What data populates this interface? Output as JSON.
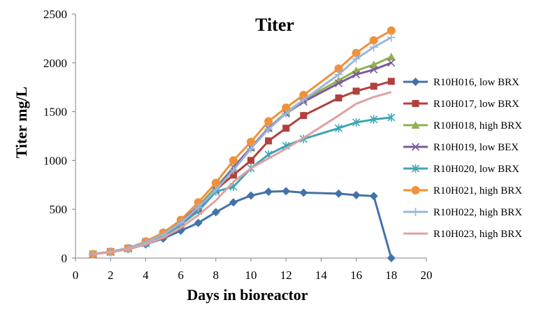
{
  "chart_data": {
    "type": "line",
    "title": "Titer",
    "xlabel": "Days in bioreactor",
    "ylabel": "Titer mg/L",
    "xlim": [
      0,
      20
    ],
    "ylim": [
      0,
      2500
    ],
    "xticks": [
      0,
      2,
      4,
      6,
      8,
      10,
      12,
      14,
      16,
      18,
      20
    ],
    "yticks": [
      0,
      500,
      1000,
      1500,
      2000,
      2500
    ],
    "grid": false,
    "legend_position": "right",
    "series": [
      {
        "name": "R10H016, low BRX",
        "color": "#4472A8",
        "marker": "diamond",
        "x": [
          1,
          2,
          3,
          4,
          5,
          6,
          7,
          8,
          9,
          10,
          11,
          12,
          13,
          15,
          16,
          17,
          18
        ],
        "y": [
          40,
          60,
          90,
          140,
          200,
          280,
          360,
          470,
          570,
          640,
          680,
          685,
          670,
          660,
          645,
          635,
          0
        ]
      },
      {
        "name": "R10H017, low BRX",
        "color": "#B2403D",
        "marker": "square",
        "x": [
          1,
          2,
          3,
          4,
          5,
          6,
          7,
          8,
          9,
          10,
          11,
          12,
          13,
          15,
          16,
          17,
          18
        ],
        "y": [
          40,
          65,
          100,
          160,
          230,
          340,
          490,
          700,
          850,
          1000,
          1200,
          1330,
          1460,
          1640,
          1710,
          1760,
          1810
        ]
      },
      {
        "name": "R10H018, high BRX",
        "color": "#8FB14B",
        "marker": "triangle",
        "x": [
          1,
          2,
          3,
          4,
          5,
          6,
          7,
          8,
          9,
          10,
          11,
          12,
          13,
          15,
          16,
          17,
          18
        ],
        "y": [
          40,
          65,
          100,
          160,
          240,
          360,
          530,
          730,
          920,
          1130,
          1330,
          1490,
          1620,
          1820,
          1920,
          1980,
          2060
        ]
      },
      {
        "name": "R10H019, low BEX",
        "color": "#7B5A9F",
        "marker": "x",
        "x": [
          1,
          2,
          3,
          4,
          5,
          6,
          7,
          8,
          9,
          10,
          11,
          12,
          13,
          15,
          16,
          17,
          18
        ],
        "y": [
          40,
          65,
          100,
          165,
          250,
          370,
          530,
          700,
          930,
          1130,
          1330,
          1480,
          1600,
          1790,
          1880,
          1930,
          2000
        ]
      },
      {
        "name": "R10H020, low BRX",
        "color": "#3FA4B8",
        "marker": "asterisk",
        "x": [
          1,
          2,
          3,
          4,
          5,
          6,
          7,
          8,
          9,
          10,
          11,
          12,
          13,
          15,
          16,
          17,
          18
        ],
        "y": [
          40,
          60,
          95,
          150,
          230,
          340,
          480,
          680,
          730,
          920,
          1060,
          1150,
          1220,
          1330,
          1390,
          1420,
          1440
        ]
      },
      {
        "name": "R10H021, high BRX",
        "color": "#F0913A",
        "marker": "circle",
        "x": [
          1,
          2,
          3,
          4,
          5,
          6,
          7,
          8,
          9,
          10,
          11,
          12,
          13,
          15,
          16,
          17,
          18
        ],
        "y": [
          40,
          65,
          100,
          170,
          260,
          390,
          570,
          770,
          1000,
          1190,
          1400,
          1540,
          1670,
          1940,
          2100,
          2230,
          2330
        ]
      },
      {
        "name": "R10H022, high BRX",
        "color": "#9CB4D8",
        "marker": "plus",
        "x": [
          1,
          2,
          3,
          4,
          5,
          6,
          7,
          8,
          9,
          10,
          11,
          12,
          13,
          15,
          16,
          17,
          18
        ],
        "y": [
          40,
          65,
          100,
          160,
          240,
          360,
          520,
          700,
          900,
          1120,
          1320,
          1480,
          1620,
          1880,
          2040,
          2160,
          2260
        ]
      },
      {
        "name": "R10H023, high BRX",
        "color": "#E0A1A0",
        "marker": "none",
        "x": [
          1,
          2,
          3,
          4,
          5,
          6,
          7,
          8,
          9,
          10,
          11,
          12,
          13,
          15,
          16,
          17,
          18
        ],
        "y": [
          40,
          60,
          90,
          140,
          210,
          310,
          440,
          590,
          780,
          920,
          1020,
          1120,
          1230,
          1460,
          1580,
          1650,
          1700
        ]
      }
    ]
  }
}
